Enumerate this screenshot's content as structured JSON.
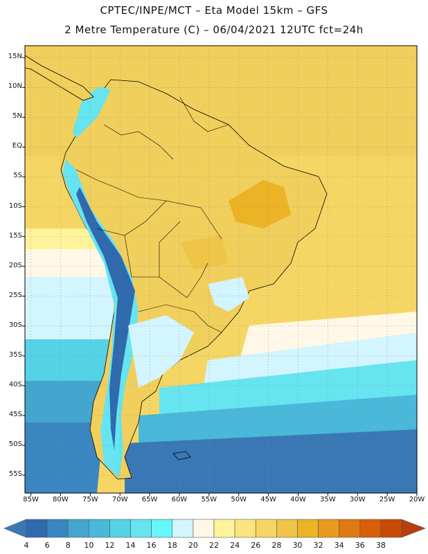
{
  "header": {
    "line1": "CPTEC/INPE/MCT –  Eta Model 15km – GFS",
    "line2": "2 Metre Temperature (C) – 06/04/2021 12UTC fct=24h"
  },
  "map": {
    "lon_range": [
      -86,
      -20
    ],
    "lat_range": [
      -58,
      17
    ],
    "lat_ticks": [
      "15N",
      "10N",
      "5N",
      "EQ",
      "5S",
      "10S",
      "15S",
      "20S",
      "25S",
      "30S",
      "35S",
      "40S",
      "45S",
      "50S",
      "55S"
    ],
    "lon_ticks": [
      "85W",
      "80W",
      "75W",
      "70W",
      "65W",
      "60W",
      "55W",
      "50W",
      "45W",
      "40W",
      "35W",
      "30W",
      "25W",
      "20W"
    ]
  },
  "colorbar": {
    "labels": [
      "4",
      "6",
      "8",
      "10",
      "12",
      "14",
      "16",
      "18",
      "20",
      "22",
      "24",
      "26",
      "28",
      "30",
      "32",
      "34",
      "36",
      "38"
    ],
    "colors": [
      "#3a78b5",
      "#2f6aae",
      "#3a86c0",
      "#43a6cf",
      "#49b8d9",
      "#55d2e6",
      "#66e4f0",
      "#66f7fb",
      "#d2f5ff",
      "#fff8e6",
      "#fff39b",
      "#fbe47e",
      "#f5d665",
      "#efc548",
      "#ecb326",
      "#e89a20",
      "#df7a12",
      "#d95e08",
      "#c94a05",
      "#b83e10"
    ]
  }
}
